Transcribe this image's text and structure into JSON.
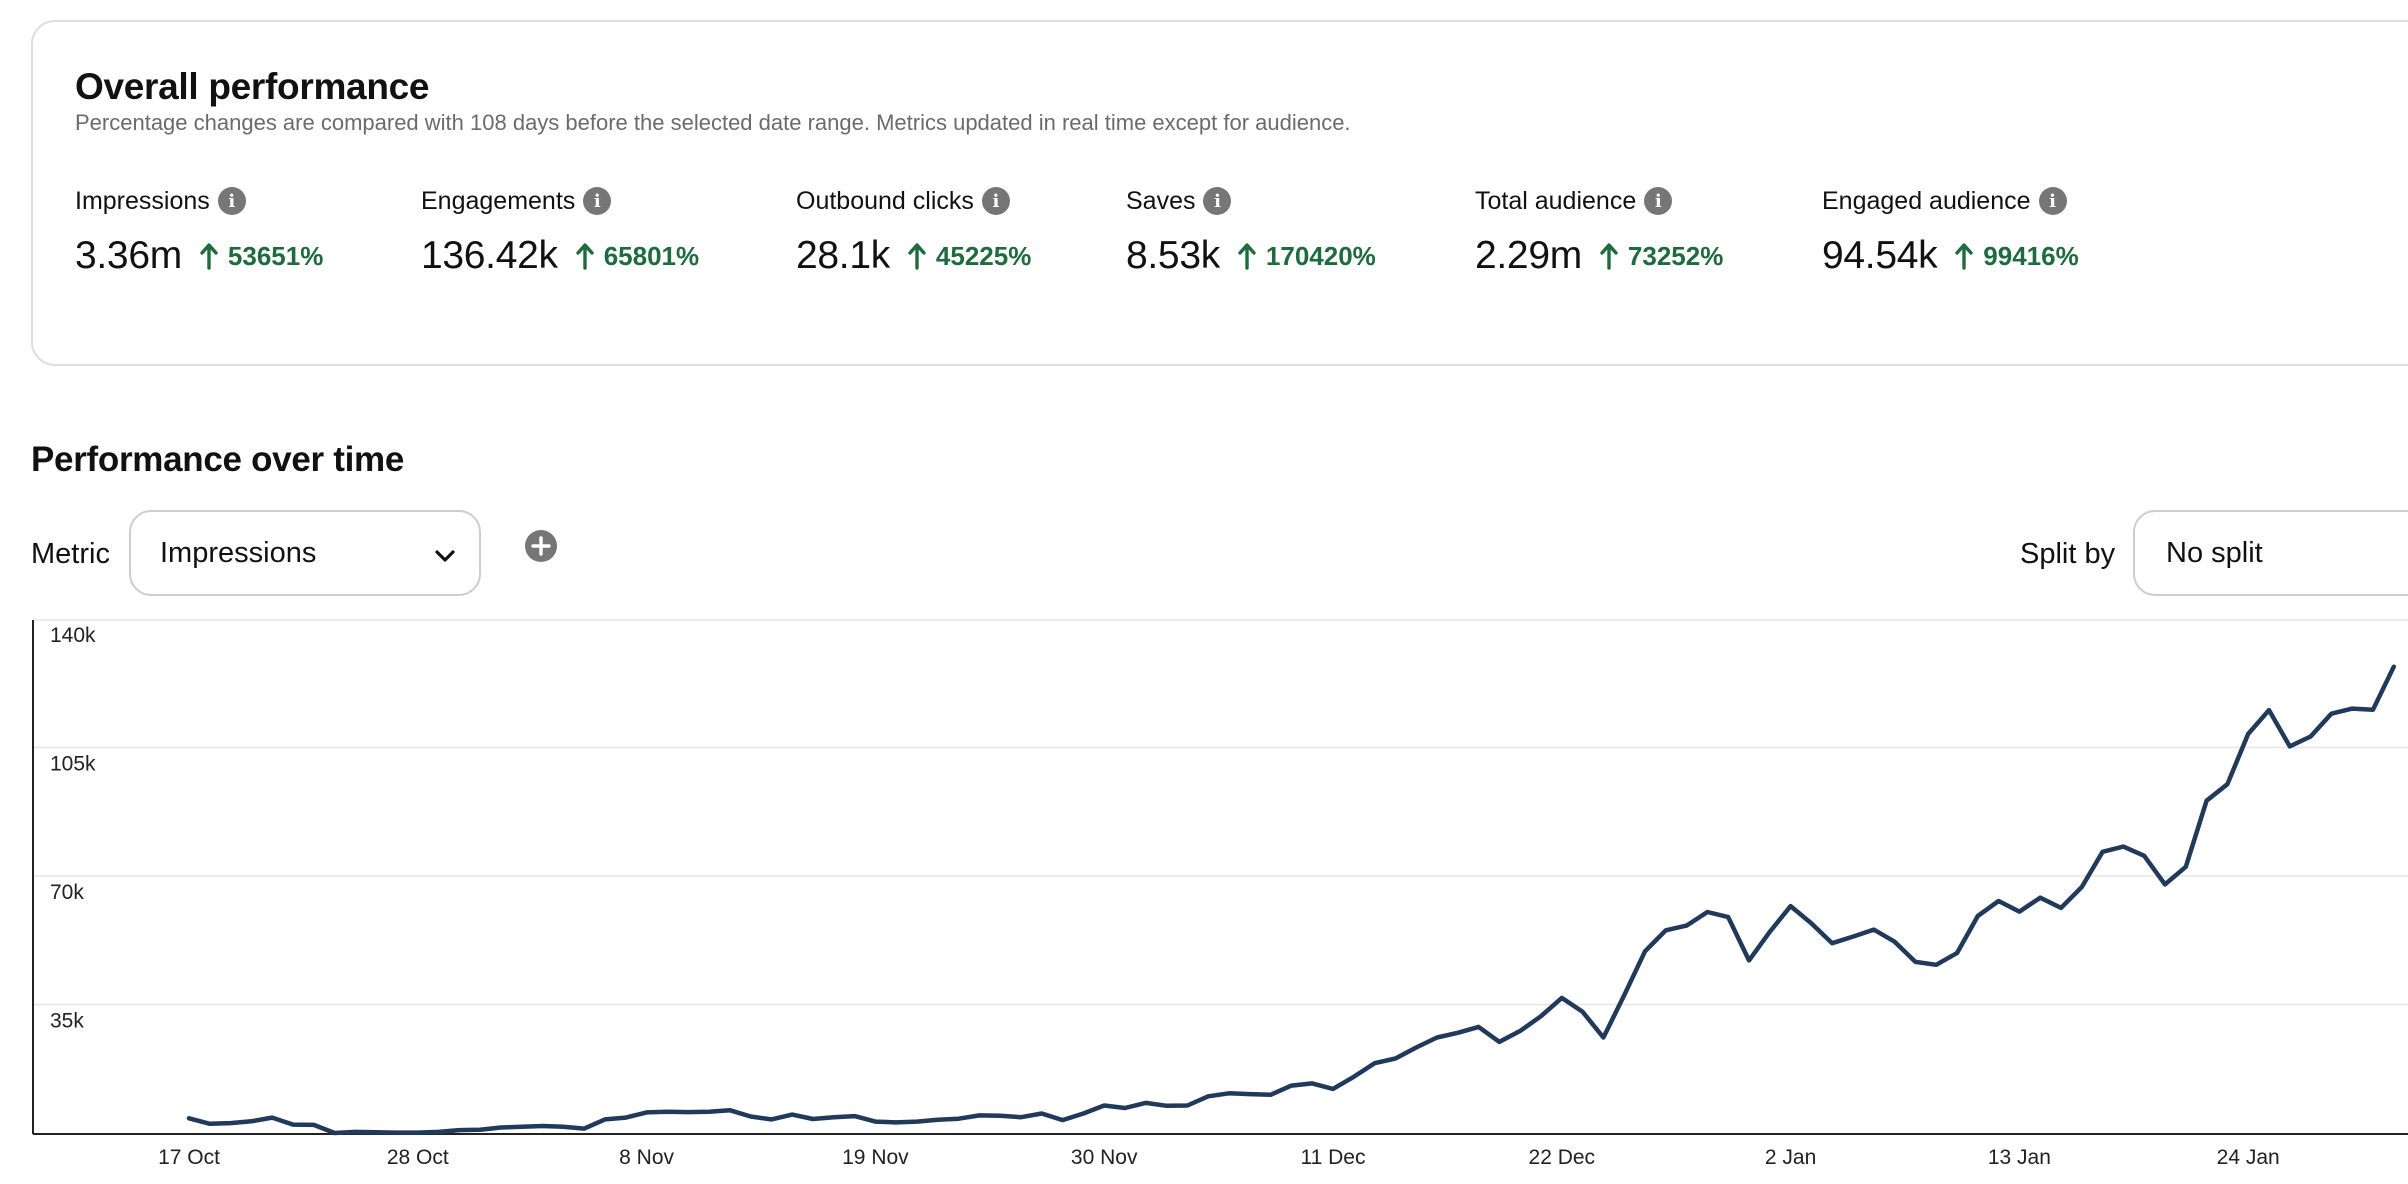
{
  "overall": {
    "title": "Overall performance",
    "subtitle": "Percentage changes are compared with 108 days before the selected date range. Metrics updated in real time except for audience.",
    "metrics": [
      {
        "label": "Impressions",
        "value": "3.36m",
        "change": "53651%"
      },
      {
        "label": "Engagements",
        "value": "136.42k",
        "change": "65801%"
      },
      {
        "label": "Outbound clicks",
        "value": "28.1k",
        "change": "45225%"
      },
      {
        "label": "Saves",
        "value": "8.53k",
        "change": "170420%"
      },
      {
        "label": "Total audience",
        "value": "2.29m",
        "change": "73252%"
      },
      {
        "label": "Engaged audience",
        "value": "94.54k",
        "change": "99416%"
      }
    ],
    "positive_color": "#1e6b3e",
    "icon": "info-icon",
    "change_icon": "arrow-up-icon"
  },
  "over_time": {
    "title": "Performance over time",
    "metric_label": "Metric",
    "metric_value": "Impressions",
    "add_icon": "plus-circle-icon",
    "split_label": "Split by",
    "split_value": "No split"
  },
  "chart_data": {
    "type": "line",
    "x_start": "17 Oct",
    "x_ticks": [
      "17 Oct",
      "28 Oct",
      "8 Nov",
      "19 Nov",
      "30 Nov",
      "11 Dec",
      "22 Dec",
      "2 Jan",
      "13 Jan",
      "24 Jan"
    ],
    "y_ticks": [
      "140k",
      "105k",
      "70k",
      "35k"
    ],
    "ylim": [
      0,
      140000
    ],
    "grid": true,
    "line_color": "#213a5c",
    "series": [
      {
        "values": [
          4000,
          2500,
          2700,
          3200,
          4200,
          2300,
          2200,
          0,
          300,
          200,
          100,
          100,
          300,
          800,
          900,
          1500,
          1700,
          1900,
          1700,
          1200,
          3700,
          4200,
          5600,
          5800,
          5700,
          5800,
          6200,
          4500,
          3700,
          5000,
          3800,
          4300,
          4600,
          3100,
          2900,
          3100,
          3600,
          3900,
          4800,
          4700,
          4300,
          5300,
          3500,
          5300,
          7500,
          6800,
          8200,
          7400,
          7500,
          10000,
          10800,
          10600,
          10400,
          12900,
          13500,
          12000,
          15300,
          19000,
          20300,
          23300,
          26000,
          27300,
          28900,
          24800,
          27800,
          31800,
          36800,
          33000,
          26000,
          37500,
          49500,
          55200,
          56500,
          60200,
          58800,
          47000,
          54800,
          61800,
          57100,
          51700,
          53500,
          55400,
          52100,
          46600,
          45800,
          49000,
          59100,
          63200,
          60300,
          64100,
          61300,
          67000,
          76600,
          78000,
          75500,
          67700,
          72500,
          90500,
          95000,
          108700,
          115200,
          105300,
          108000,
          114200,
          115600,
          115300,
          127000
        ]
      }
    ]
  }
}
